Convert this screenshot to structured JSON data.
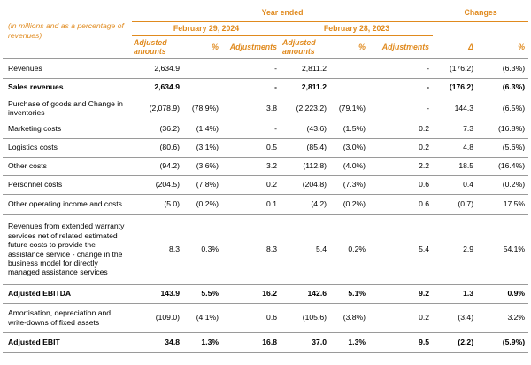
{
  "header": {
    "note": "(in millions and as a percentage of revenues)",
    "year_ended": "Year ended",
    "changes": "Changes",
    "period_2024": "February 29, 2024",
    "period_2023": "February 28, 2023",
    "col_adjusted": "Adjusted amounts",
    "col_pct": "%",
    "col_adjustments": "Adjustments",
    "col_delta": "Δ",
    "col_change_pct": "%"
  },
  "rows": [
    {
      "label": "Revenues",
      "bold": false,
      "h": 22,
      "a24": "2,634.9",
      "p24": "",
      "adj24": "-",
      "a23": "2,811.2",
      "p23": "",
      "adj23": "-",
      "d": "(176.2)",
      "dp": "(6.3%)"
    },
    {
      "label": "Sales revenues",
      "bold": true,
      "h": 21,
      "a24": "2,634.9",
      "p24": "",
      "adj24": "-",
      "a23": "2,811.2",
      "p23": "",
      "adj23": "-",
      "d": "(176.2)",
      "dp": "(6.3%)"
    },
    {
      "label": "Purchase of goods and Change in inventories",
      "bold": false,
      "h": 26,
      "a24": "(2,078.9)",
      "p24": "(78.9%)",
      "adj24": "3.8",
      "a23": "(2,223.2)",
      "p23": "(79.1%)",
      "adj23": "-",
      "d": "144.3",
      "dp": "(6.5%)"
    },
    {
      "label": "Marketing costs",
      "bold": false,
      "h": 21,
      "a24": "(36.2)",
      "p24": "(1.4%)",
      "adj24": "-",
      "a23": "(43.6)",
      "p23": "(1.5%)",
      "adj23": "0.2",
      "d": "7.3",
      "dp": "(16.8%)"
    },
    {
      "label": "Logistics costs",
      "bold": false,
      "h": 21,
      "a24": "(80.6)",
      "p24": "(3.1%)",
      "adj24": "0.5",
      "a23": "(85.4)",
      "p23": "(3.0%)",
      "adj23": "0.2",
      "d": "4.8",
      "dp": "(5.6%)"
    },
    {
      "label": "Other costs",
      "bold": false,
      "h": 21,
      "a24": "(94.2)",
      "p24": "(3.6%)",
      "adj24": "3.2",
      "a23": "(112.8)",
      "p23": "(4.0%)",
      "adj23": "2.2",
      "d": "18.5",
      "dp": "(16.4%)"
    },
    {
      "label": "Personnel costs",
      "bold": false,
      "h": 21,
      "a24": "(204.5)",
      "p24": "(7.8%)",
      "adj24": "0.2",
      "a23": "(204.8)",
      "p23": "(7.3%)",
      "adj23": "0.6",
      "d": "0.4",
      "dp": "(0.2%)"
    },
    {
      "label": "Other operating income and costs",
      "bold": false,
      "h": 23,
      "a24": "(5.0)",
      "p24": "(0.2%)",
      "adj24": "0.1",
      "a23": "(4.2)",
      "p23": "(0.2%)",
      "adj23": "0.6",
      "d": "(0.7)",
      "dp": "17.5%"
    },
    {
      "label": "Revenues from extended warranty services net of related estimated future costs to provide the assistance service - change in the business model for directly managed assistance services",
      "bold": false,
      "h": 79,
      "a24": "8.3",
      "p24": "0.3%",
      "adj24": "8.3",
      "a23": "5.4",
      "p23": "0.2%",
      "adj23": "5.4",
      "d": "2.9",
      "dp": "54.1%"
    },
    {
      "label": "Adjusted EBITDA",
      "bold": true,
      "h": 21,
      "a24": "143.9",
      "p24": "5.5%",
      "adj24": "16.2",
      "a23": "142.6",
      "p23": "5.1%",
      "adj23": "9.2",
      "d": "1.3",
      "dp": "0.9%"
    },
    {
      "label": "Amortisation, depreciation and write-downs of fixed assets",
      "bold": false,
      "h": 33,
      "a24": "(109.0)",
      "p24": "(4.1%)",
      "adj24": "0.6",
      "a23": "(105.6)",
      "p23": "(3.8%)",
      "adj23": "0.2",
      "d": "(3.4)",
      "dp": "3.2%"
    },
    {
      "label": "Adjusted EBIT",
      "bold": true,
      "h": 22,
      "a24": "34.8",
      "p24": "1.3%",
      "adj24": "16.8",
      "a23": "37.0",
      "p23": "1.3%",
      "adj23": "9.5",
      "d": "(2.2)",
      "dp": "(5.9%)"
    }
  ]
}
